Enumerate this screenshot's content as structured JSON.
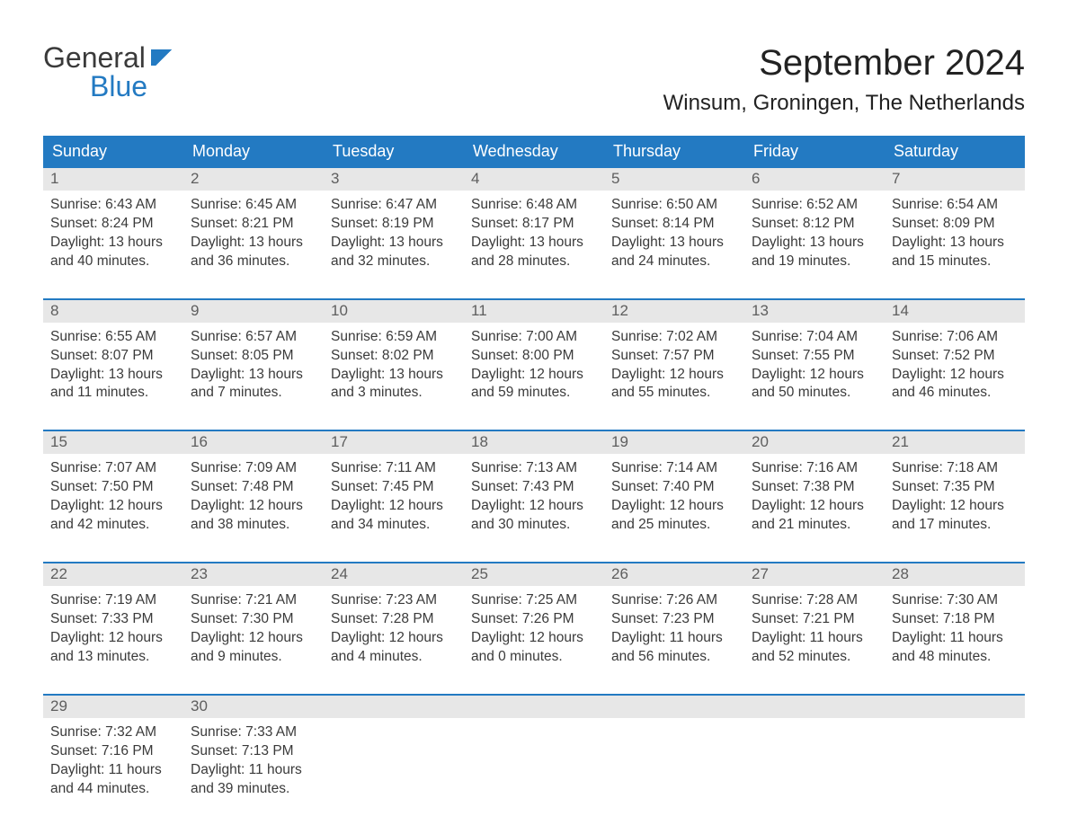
{
  "brand": {
    "line1": "General",
    "line2": "Blue"
  },
  "title": "September 2024",
  "location": "Winsum, Groningen, The Netherlands",
  "colors": {
    "header_bg": "#237ac2",
    "header_text": "#ffffff",
    "daynum_bg": "#e7e7e7",
    "daynum_text": "#5e5e5e",
    "body_text": "#3a3a3a",
    "week_divider": "#237ac2",
    "page_bg": "#ffffff"
  },
  "typography": {
    "title_fontsize": 40,
    "location_fontsize": 24,
    "dow_fontsize": 18,
    "body_fontsize": 15.5
  },
  "layout": {
    "columns": 7,
    "weeks": 5,
    "cell_aspect": "auto"
  },
  "days_of_week": [
    "Sunday",
    "Monday",
    "Tuesday",
    "Wednesday",
    "Thursday",
    "Friday",
    "Saturday"
  ],
  "weeks": [
    {
      "days": [
        {
          "n": "1",
          "sunrise": "Sunrise: 6:43 AM",
          "sunset": "Sunset: 8:24 PM",
          "dl1": "Daylight: 13 hours",
          "dl2": "and 40 minutes."
        },
        {
          "n": "2",
          "sunrise": "Sunrise: 6:45 AM",
          "sunset": "Sunset: 8:21 PM",
          "dl1": "Daylight: 13 hours",
          "dl2": "and 36 minutes."
        },
        {
          "n": "3",
          "sunrise": "Sunrise: 6:47 AM",
          "sunset": "Sunset: 8:19 PM",
          "dl1": "Daylight: 13 hours",
          "dl2": "and 32 minutes."
        },
        {
          "n": "4",
          "sunrise": "Sunrise: 6:48 AM",
          "sunset": "Sunset: 8:17 PM",
          "dl1": "Daylight: 13 hours",
          "dl2": "and 28 minutes."
        },
        {
          "n": "5",
          "sunrise": "Sunrise: 6:50 AM",
          "sunset": "Sunset: 8:14 PM",
          "dl1": "Daylight: 13 hours",
          "dl2": "and 24 minutes."
        },
        {
          "n": "6",
          "sunrise": "Sunrise: 6:52 AM",
          "sunset": "Sunset: 8:12 PM",
          "dl1": "Daylight: 13 hours",
          "dl2": "and 19 minutes."
        },
        {
          "n": "7",
          "sunrise": "Sunrise: 6:54 AM",
          "sunset": "Sunset: 8:09 PM",
          "dl1": "Daylight: 13 hours",
          "dl2": "and 15 minutes."
        }
      ]
    },
    {
      "days": [
        {
          "n": "8",
          "sunrise": "Sunrise: 6:55 AM",
          "sunset": "Sunset: 8:07 PM",
          "dl1": "Daylight: 13 hours",
          "dl2": "and 11 minutes."
        },
        {
          "n": "9",
          "sunrise": "Sunrise: 6:57 AM",
          "sunset": "Sunset: 8:05 PM",
          "dl1": "Daylight: 13 hours",
          "dl2": "and 7 minutes."
        },
        {
          "n": "10",
          "sunrise": "Sunrise: 6:59 AM",
          "sunset": "Sunset: 8:02 PM",
          "dl1": "Daylight: 13 hours",
          "dl2": "and 3 minutes."
        },
        {
          "n": "11",
          "sunrise": "Sunrise: 7:00 AM",
          "sunset": "Sunset: 8:00 PM",
          "dl1": "Daylight: 12 hours",
          "dl2": "and 59 minutes."
        },
        {
          "n": "12",
          "sunrise": "Sunrise: 7:02 AM",
          "sunset": "Sunset: 7:57 PM",
          "dl1": "Daylight: 12 hours",
          "dl2": "and 55 minutes."
        },
        {
          "n": "13",
          "sunrise": "Sunrise: 7:04 AM",
          "sunset": "Sunset: 7:55 PM",
          "dl1": "Daylight: 12 hours",
          "dl2": "and 50 minutes."
        },
        {
          "n": "14",
          "sunrise": "Sunrise: 7:06 AM",
          "sunset": "Sunset: 7:52 PM",
          "dl1": "Daylight: 12 hours",
          "dl2": "and 46 minutes."
        }
      ]
    },
    {
      "days": [
        {
          "n": "15",
          "sunrise": "Sunrise: 7:07 AM",
          "sunset": "Sunset: 7:50 PM",
          "dl1": "Daylight: 12 hours",
          "dl2": "and 42 minutes."
        },
        {
          "n": "16",
          "sunrise": "Sunrise: 7:09 AM",
          "sunset": "Sunset: 7:48 PM",
          "dl1": "Daylight: 12 hours",
          "dl2": "and 38 minutes."
        },
        {
          "n": "17",
          "sunrise": "Sunrise: 7:11 AM",
          "sunset": "Sunset: 7:45 PM",
          "dl1": "Daylight: 12 hours",
          "dl2": "and 34 minutes."
        },
        {
          "n": "18",
          "sunrise": "Sunrise: 7:13 AM",
          "sunset": "Sunset: 7:43 PM",
          "dl1": "Daylight: 12 hours",
          "dl2": "and 30 minutes."
        },
        {
          "n": "19",
          "sunrise": "Sunrise: 7:14 AM",
          "sunset": "Sunset: 7:40 PM",
          "dl1": "Daylight: 12 hours",
          "dl2": "and 25 minutes."
        },
        {
          "n": "20",
          "sunrise": "Sunrise: 7:16 AM",
          "sunset": "Sunset: 7:38 PM",
          "dl1": "Daylight: 12 hours",
          "dl2": "and 21 minutes."
        },
        {
          "n": "21",
          "sunrise": "Sunrise: 7:18 AM",
          "sunset": "Sunset: 7:35 PM",
          "dl1": "Daylight: 12 hours",
          "dl2": "and 17 minutes."
        }
      ]
    },
    {
      "days": [
        {
          "n": "22",
          "sunrise": "Sunrise: 7:19 AM",
          "sunset": "Sunset: 7:33 PM",
          "dl1": "Daylight: 12 hours",
          "dl2": "and 13 minutes."
        },
        {
          "n": "23",
          "sunrise": "Sunrise: 7:21 AM",
          "sunset": "Sunset: 7:30 PM",
          "dl1": "Daylight: 12 hours",
          "dl2": "and 9 minutes."
        },
        {
          "n": "24",
          "sunrise": "Sunrise: 7:23 AM",
          "sunset": "Sunset: 7:28 PM",
          "dl1": "Daylight: 12 hours",
          "dl2": "and 4 minutes."
        },
        {
          "n": "25",
          "sunrise": "Sunrise: 7:25 AM",
          "sunset": "Sunset: 7:26 PM",
          "dl1": "Daylight: 12 hours",
          "dl2": "and 0 minutes."
        },
        {
          "n": "26",
          "sunrise": "Sunrise: 7:26 AM",
          "sunset": "Sunset: 7:23 PM",
          "dl1": "Daylight: 11 hours",
          "dl2": "and 56 minutes."
        },
        {
          "n": "27",
          "sunrise": "Sunrise: 7:28 AM",
          "sunset": "Sunset: 7:21 PM",
          "dl1": "Daylight: 11 hours",
          "dl2": "and 52 minutes."
        },
        {
          "n": "28",
          "sunrise": "Sunrise: 7:30 AM",
          "sunset": "Sunset: 7:18 PM",
          "dl1": "Daylight: 11 hours",
          "dl2": "and 48 minutes."
        }
      ]
    },
    {
      "days": [
        {
          "n": "29",
          "sunrise": "Sunrise: 7:32 AM",
          "sunset": "Sunset: 7:16 PM",
          "dl1": "Daylight: 11 hours",
          "dl2": "and 44 minutes."
        },
        {
          "n": "30",
          "sunrise": "Sunrise: 7:33 AM",
          "sunset": "Sunset: 7:13 PM",
          "dl1": "Daylight: 11 hours",
          "dl2": "and 39 minutes."
        },
        {
          "n": "",
          "sunrise": "",
          "sunset": "",
          "dl1": "",
          "dl2": ""
        },
        {
          "n": "",
          "sunrise": "",
          "sunset": "",
          "dl1": "",
          "dl2": ""
        },
        {
          "n": "",
          "sunrise": "",
          "sunset": "",
          "dl1": "",
          "dl2": ""
        },
        {
          "n": "",
          "sunrise": "",
          "sunset": "",
          "dl1": "",
          "dl2": ""
        },
        {
          "n": "",
          "sunrise": "",
          "sunset": "",
          "dl1": "",
          "dl2": ""
        }
      ]
    }
  ]
}
